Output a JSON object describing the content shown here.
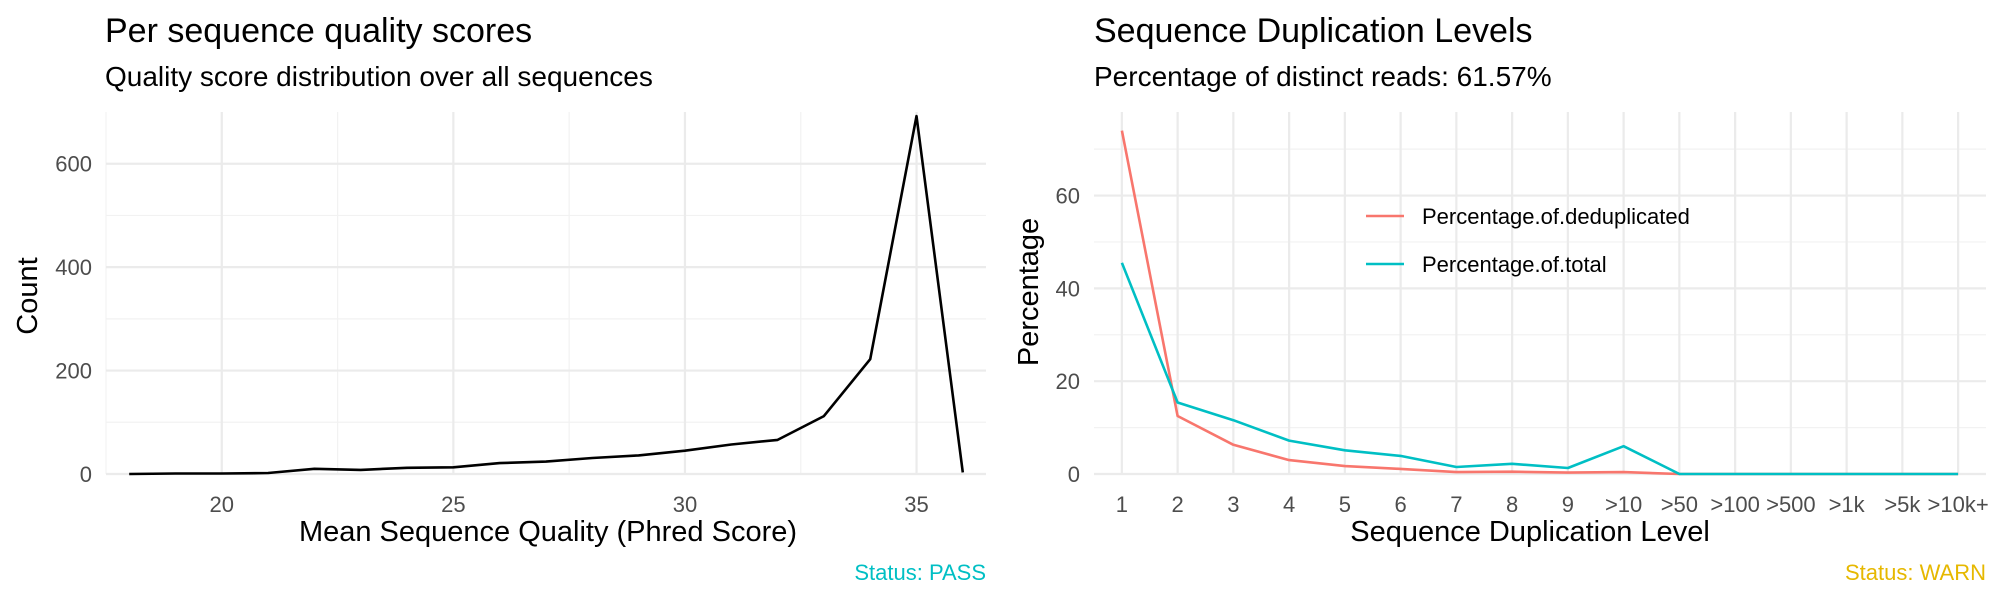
{
  "chart_data": [
    {
      "type": "line",
      "title": "Per sequence quality scores",
      "subtitle": "Quality score distribution over all sequences",
      "xlabel": "Mean Sequence Quality (Phred Score)",
      "ylabel": "Count",
      "xlim": [
        17.5,
        36.5
      ],
      "ylim": [
        0,
        700
      ],
      "x_ticks": [
        20,
        25,
        30,
        35
      ],
      "y_ticks": [
        0,
        200,
        400,
        600
      ],
      "grid": true,
      "series": [
        {
          "color": "#000000",
          "x": [
            18,
            19,
            20,
            21,
            22,
            23,
            24,
            25,
            26,
            27,
            28,
            29,
            30,
            31,
            32,
            33,
            34,
            35,
            36
          ],
          "values": [
            0,
            1,
            1,
            2,
            10,
            8,
            12,
            13,
            21,
            24,
            31,
            36,
            45,
            57,
            66,
            112,
            222,
            692,
            3
          ]
        }
      ],
      "status": {
        "text": "Status: PASS",
        "color": "#00BFC4"
      }
    },
    {
      "type": "line",
      "title": "Sequence Duplication Levels",
      "subtitle": "Percentage of distinct reads: 61.57%",
      "xlabel": "Sequence Duplication Level",
      "ylabel": "Percentage",
      "categories": [
        "1",
        "2",
        "3",
        "4",
        "5",
        "6",
        "7",
        "8",
        "9",
        ">10",
        ">50",
        ">100",
        ">500",
        ">1k",
        ">5k",
        ">10k+"
      ],
      "ylim": [
        0,
        78
      ],
      "y_ticks": [
        0,
        20,
        40,
        60
      ],
      "grid": true,
      "legend_placement": "top-center",
      "series": [
        {
          "name": "Percentage.of.deduplicated",
          "color": "#F8766D",
          "values": [
            74.0,
            12.5,
            6.3,
            3.0,
            1.7,
            1.1,
            0.4,
            0.5,
            0.3,
            0.4,
            0.0,
            0.0,
            0.0,
            0.0,
            0.0,
            0.0
          ]
        },
        {
          "name": "Percentage.of.total",
          "color": "#00BFC4",
          "values": [
            45.5,
            15.4,
            11.6,
            7.2,
            5.1,
            3.9,
            1.5,
            2.2,
            1.3,
            6.0,
            0.0,
            0.0,
            0.0,
            0.0,
            0.0,
            0.0
          ]
        }
      ],
      "status": {
        "text": "Status: WARN",
        "color": "#E6B800"
      }
    }
  ]
}
